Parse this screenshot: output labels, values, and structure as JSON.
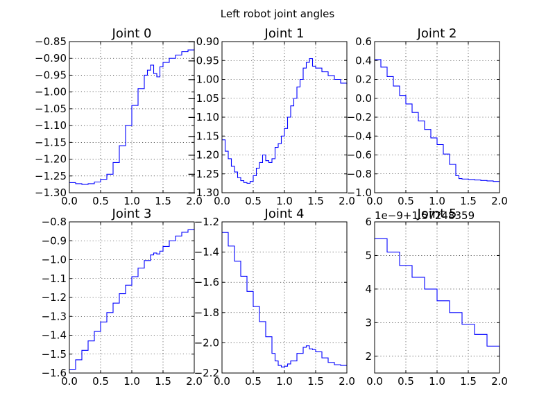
{
  "figure_title": "Left robot  joint angles",
  "chart_data": [
    {
      "type": "line",
      "title": "Joint 0",
      "xlim": [
        0.0,
        2.0
      ],
      "ylim": [
        -1.3,
        -0.85
      ],
      "xticks": [
        "0.0",
        "0.5",
        "1.0",
        "1.5",
        "2.0"
      ],
      "yticks": [
        "-1.30",
        "-1.25",
        "-1.20",
        "-1.15",
        "-1.10",
        "-1.05",
        "-1.00",
        "-0.95",
        "-0.90",
        "-0.85"
      ],
      "offset_text": "",
      "grid": true,
      "step": true,
      "x": [
        0.0,
        0.1,
        0.2,
        0.3,
        0.4,
        0.5,
        0.6,
        0.7,
        0.8,
        0.9,
        1.0,
        1.1,
        1.2,
        1.25,
        1.3,
        1.35,
        1.4,
        1.45,
        1.5,
        1.6,
        1.7,
        1.8,
        1.9,
        2.0
      ],
      "y": [
        -1.27,
        -1.273,
        -1.275,
        -1.273,
        -1.268,
        -1.26,
        -1.245,
        -1.21,
        -1.16,
        -1.1,
        -1.04,
        -0.99,
        -0.95,
        -0.935,
        -0.92,
        -0.945,
        -0.955,
        -0.925,
        -0.912,
        -0.9,
        -0.89,
        -0.88,
        -0.875,
        -0.87
      ]
    },
    {
      "type": "line",
      "title": "Joint 1",
      "xlim": [
        0.0,
        2.0
      ],
      "ylim": [
        -1.3,
        -0.9
      ],
      "xticks": [
        "0.0",
        "0.5",
        "1.0",
        "1.5",
        "2.0"
      ],
      "yticks": [
        "-1.30",
        "-1.25",
        "-1.20",
        "-1.15",
        "-1.10",
        "-1.05",
        "-1.00",
        "-0.95",
        "-0.90"
      ],
      "offset_text": "",
      "grid": true,
      "step": true,
      "x": [
        0.0,
        0.05,
        0.1,
        0.15,
        0.2,
        0.25,
        0.3,
        0.35,
        0.4,
        0.45,
        0.5,
        0.55,
        0.6,
        0.65,
        0.7,
        0.75,
        0.8,
        0.85,
        0.9,
        0.95,
        1.0,
        1.05,
        1.1,
        1.15,
        1.2,
        1.25,
        1.3,
        1.35,
        1.4,
        1.45,
        1.5,
        1.6,
        1.7,
        1.8,
        1.9,
        2.0
      ],
      "y": [
        -1.16,
        -1.19,
        -1.21,
        -1.23,
        -1.245,
        -1.26,
        -1.268,
        -1.273,
        -1.275,
        -1.27,
        -1.255,
        -1.235,
        -1.22,
        -1.2,
        -1.215,
        -1.22,
        -1.21,
        -1.18,
        -1.17,
        -1.15,
        -1.13,
        -1.1,
        -1.07,
        -1.05,
        -1.02,
        -1.0,
        -0.97,
        -0.955,
        -0.945,
        -0.965,
        -0.97,
        -0.98,
        -0.99,
        -1.0,
        -1.01,
        -1.013
      ]
    },
    {
      "type": "line",
      "title": "Joint 2",
      "xlim": [
        0.0,
        2.0
      ],
      "ylim": [
        -1.0,
        0.6
      ],
      "xticks": [
        "0.0",
        "0.5",
        "1.0",
        "1.5",
        "2.0"
      ],
      "yticks": [
        "-1.0",
        "-0.8",
        "-0.6",
        "-0.4",
        "-0.2",
        "0.0",
        "0.2",
        "0.4",
        "0.6"
      ],
      "offset_text": "",
      "grid": true,
      "step": true,
      "x": [
        0.0,
        0.1,
        0.2,
        0.3,
        0.4,
        0.5,
        0.6,
        0.7,
        0.8,
        0.9,
        1.0,
        1.1,
        1.2,
        1.3,
        1.35,
        1.4,
        1.5,
        1.6,
        1.7,
        1.8,
        1.9,
        2.0
      ],
      "y": [
        0.41,
        0.33,
        0.23,
        0.13,
        0.03,
        -0.06,
        -0.15,
        -0.24,
        -0.33,
        -0.42,
        -0.49,
        -0.59,
        -0.7,
        -0.82,
        -0.85,
        -0.855,
        -0.86,
        -0.865,
        -0.87,
        -0.875,
        -0.88,
        -0.88
      ]
    },
    {
      "type": "line",
      "title": "Joint 3",
      "xlim": [
        0.0,
        2.0
      ],
      "ylim": [
        -1.6,
        -0.8
      ],
      "xticks": [
        "0.0",
        "0.5",
        "1.0",
        "1.5",
        "2.0"
      ],
      "yticks": [
        "-1.6",
        "-1.5",
        "-1.4",
        "-1.3",
        "-1.2",
        "-1.1",
        "-1.0",
        "-0.9",
        "-0.8"
      ],
      "offset_text": "",
      "grid": true,
      "step": true,
      "x": [
        0.0,
        0.1,
        0.2,
        0.3,
        0.4,
        0.5,
        0.6,
        0.7,
        0.8,
        0.9,
        1.0,
        1.1,
        1.2,
        1.3,
        1.35,
        1.4,
        1.45,
        1.5,
        1.6,
        1.7,
        1.8,
        1.9,
        2.0
      ],
      "y": [
        -1.58,
        -1.53,
        -1.48,
        -1.43,
        -1.38,
        -1.33,
        -1.28,
        -1.23,
        -1.18,
        -1.135,
        -1.09,
        -1.045,
        -1.005,
        -0.975,
        -0.965,
        -0.97,
        -0.955,
        -0.93,
        -0.9,
        -0.875,
        -0.855,
        -0.842,
        -0.835
      ]
    },
    {
      "type": "line",
      "title": "Joint 4",
      "xlim": [
        0.0,
        2.0
      ],
      "ylim": [
        -2.2,
        -1.2
      ],
      "xticks": [
        "0.0",
        "0.5",
        "1.0",
        "1.5",
        "2.0"
      ],
      "yticks": [
        "-2.2",
        "-2.0",
        "-1.8",
        "-1.6",
        "-1.4",
        "-1.2"
      ],
      "offset_text": "",
      "grid": true,
      "step": true,
      "x": [
        0.0,
        0.1,
        0.2,
        0.3,
        0.4,
        0.5,
        0.6,
        0.7,
        0.8,
        0.85,
        0.9,
        0.95,
        1.0,
        1.05,
        1.1,
        1.2,
        1.3,
        1.35,
        1.4,
        1.45,
        1.5,
        1.6,
        1.7,
        1.8,
        1.9,
        2.0
      ],
      "y": [
        -1.27,
        -1.36,
        -1.46,
        -1.56,
        -1.66,
        -1.76,
        -1.86,
        -1.96,
        -2.07,
        -2.12,
        -2.15,
        -2.16,
        -2.155,
        -2.14,
        -2.12,
        -2.07,
        -2.03,
        -2.02,
        -2.04,
        -2.045,
        -2.06,
        -2.1,
        -2.13,
        -2.145,
        -2.15,
        -2.15
      ]
    },
    {
      "type": "line",
      "title": "Joint 5",
      "xlim": [
        0.0,
        2.0
      ],
      "ylim": [
        1.5,
        6.0
      ],
      "xticks": [
        "0.0",
        "0.5",
        "1.0",
        "1.5",
        "2.0"
      ],
      "yticks": [
        "2",
        "3",
        "4",
        "5",
        "6"
      ],
      "offset_text": "1e−9+1.57248359",
      "grid": true,
      "step": true,
      "x": [
        0.0,
        0.2,
        0.4,
        0.6,
        0.8,
        1.0,
        1.2,
        1.4,
        1.6,
        1.8,
        2.0
      ],
      "y": [
        5.5,
        5.1,
        4.7,
        4.35,
        4.0,
        3.65,
        3.3,
        2.95,
        2.65,
        2.3,
        2.0
      ]
    }
  ]
}
